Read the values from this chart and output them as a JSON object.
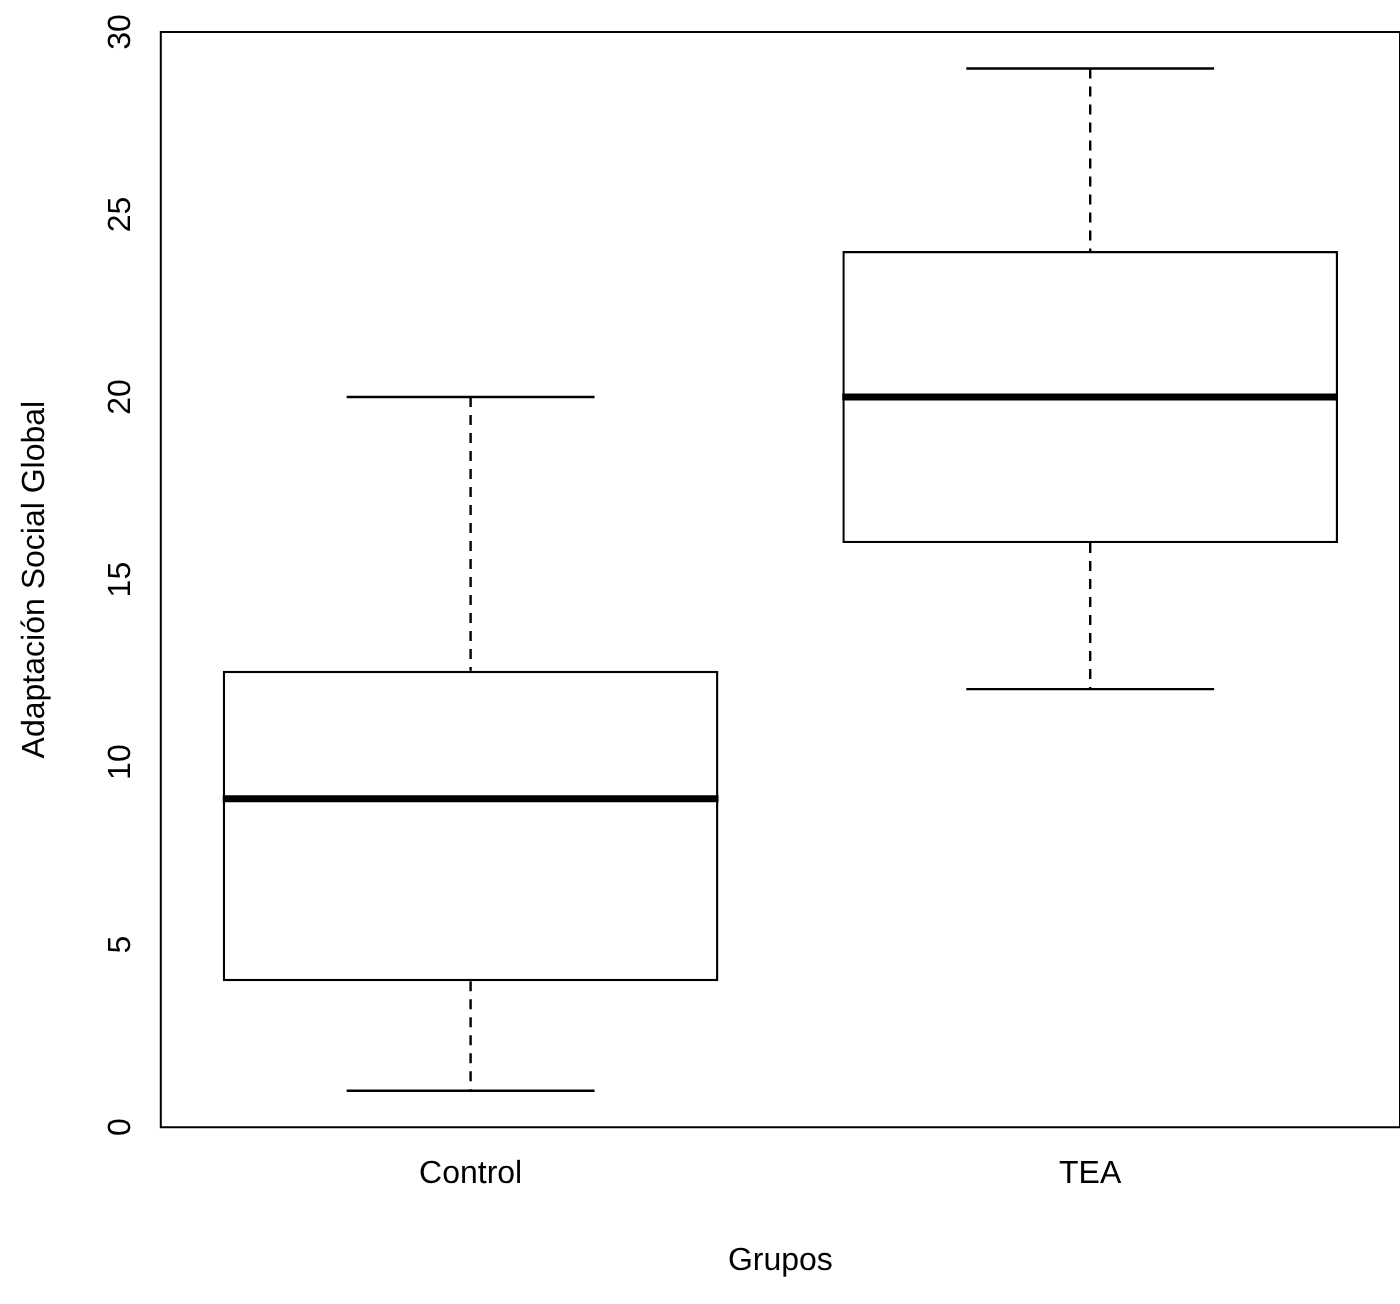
{
  "chart_data": {
    "type": "box",
    "xlabel": "Grupos",
    "ylabel": "Adaptación Social Global",
    "categories": [
      "Control",
      "TEA"
    ],
    "boxes": [
      {
        "low": 1,
        "q1": 4,
        "median": 9,
        "q3": 12.5,
        "high": 20
      },
      {
        "low": 12,
        "q1": 16,
        "median": 20,
        "q3": 24,
        "high": 29
      }
    ],
    "ylim": [
      0,
      30
    ],
    "yticks": [
      0,
      5,
      10,
      15,
      20,
      25,
      30
    ],
    "grid": false,
    "legend": false
  }
}
